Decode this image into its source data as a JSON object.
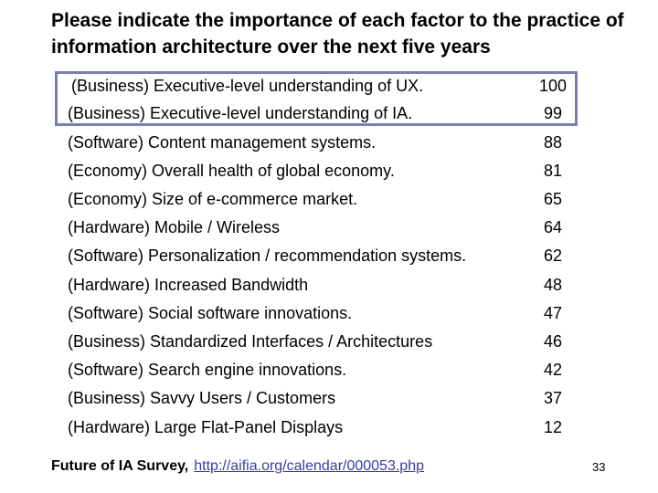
{
  "slide": {
    "title": "Please indicate the importance of each factor to the practice of information architecture over the next five years",
    "rows": [
      {
        "label": "(Business) Executive-level understanding of UX.",
        "value": "100"
      },
      {
        "label": "(Business) Executive-level understanding of IA.",
        "value": "99"
      },
      {
        "label": "(Software) Content management systems.",
        "value": "88"
      },
      {
        "label": "(Economy) Overall health of global economy.",
        "value": "81"
      },
      {
        "label": "(Economy) Size of e-commerce market.",
        "value": "65"
      },
      {
        "label": "(Hardware) Mobile / Wireless",
        "value": "64"
      },
      {
        "label": "(Software) Personalization / recommendation systems.",
        "value": "62"
      },
      {
        "label": "(Hardware) Increased Bandwidth",
        "value": "48"
      },
      {
        "label": "(Software) Social software innovations.",
        "value": "47"
      },
      {
        "label": "(Business) Standardized Interfaces / Architectures",
        "value": "46"
      },
      {
        "label": "(Software) Search engine innovations.",
        "value": "42"
      },
      {
        "label": "(Business) Savvy Users / Customers",
        "value": "37"
      },
      {
        "label": "(Hardware) Large Flat-Panel Displays",
        "value": "12"
      }
    ],
    "footer": {
      "source": "Future of IA Survey,",
      "link": "http://aifia.org/calendar/000053.php"
    },
    "page_number": "33",
    "colors": {
      "highlight": "#7a7fb8",
      "link": "#3a3aa6"
    }
  }
}
